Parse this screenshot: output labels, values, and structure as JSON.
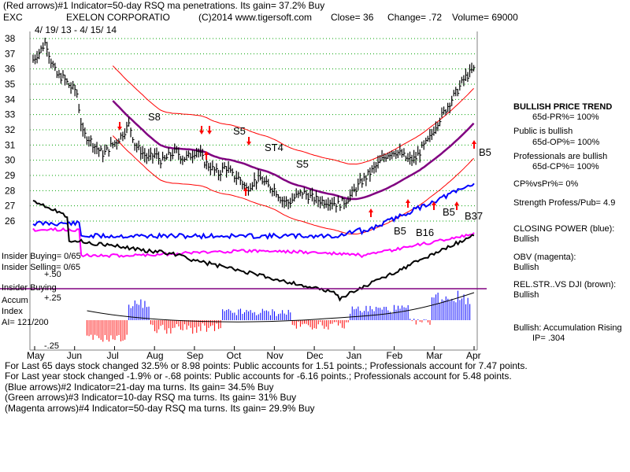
{
  "header": {
    "line1": "(Red arrows)#1 Indicator=50-day RSQ ma penetrations. Its gain= 37.2% Buy",
    "ticker": "EXC",
    "company": "EXELON CORPORATIO",
    "copyright": "(C)2014 www.tigersoft.com",
    "close": "Close=  36",
    "change": "Change= .72",
    "volume": "Volume= 69000",
    "date_range": "4/ 19/ 13 - 4/ 15/ 14"
  },
  "right_panel": {
    "trend_title": "BULLISH PRICE TREND",
    "pr": "65d-PR%= 100%",
    "public_title": "Public is bullish",
    "op": "65d-OP%= 100%",
    "pros_title": "Professionals are bullish",
    "cp": "65d-CP%= 100%",
    "cpvspr": "CP%vsPr%=  0%",
    "strength": "Strength Profess/Pub= 4.9",
    "closing_power_title": "CLOSING POWER (blue):",
    "closing_power_val": "Bullish",
    "obv_title": "OBV (magenta):",
    "obv_val": "Bullish",
    "relstr_title": "REL.STR..VS DJI (brown):",
    "relstr_val": "Bullish",
    "accum_title": "Bullish: Accumulation Rising",
    "ip": "IP=  .304"
  },
  "left_labels": {
    "insider_buying_count": "Insider Buying= 0/65",
    "insider_selling_count": "Insider Selling= 0/65",
    "insider_buying": "Insider Buying",
    "accum": "Accum",
    "index": "Index",
    "ai": "AI= 121/200",
    "plus50": "+.50",
    "plus25": "+.25",
    "minus25": "-.25"
  },
  "footer": {
    "line1": "For Last 65 days stock changed  32.5% or  8.98 points:  Public accounts for  1.51 points.;  Professionals account for  7.47 points.",
    "line2": "For Last year stock changed -1.9% or -.68 points:  Public accounts for -6.16 points.;  Professionals account for  5.48 points.",
    "line3": "(Blue arrows)#2 Indicator=21-day ma turns. Its gain= 34.5% Buy",
    "line4": "(Green arrows)#3 Indicator=10-day RSQ ma turns. Its gain= 31% Buy",
    "line5": "(Magenta arrows)#4 Indicator=50-day RSQ ma turns. Its gain= 29.9% Buy"
  },
  "colors": {
    "price": "#000000",
    "ma": "#800080",
    "band": "#ff0000",
    "closing_power": "#0000ff",
    "obv": "#ff00ff",
    "relstr": "#000000",
    "grid": "#00a000",
    "accum_pos": "#0000ff",
    "accum_neg": "#ff0000",
    "insider_line": "#800080"
  },
  "chart_data": {
    "type": "line",
    "title": "EXELON CORPORATIO",
    "y_ticks": [
      38,
      37,
      36,
      35,
      34,
      33,
      32,
      31,
      30,
      29,
      28,
      27,
      26
    ],
    "ylim": [
      25.6,
      38.6
    ],
    "x_months": [
      "May",
      "Jun",
      "Jul",
      "Aug",
      "Sep",
      "Oct",
      "Nov",
      "Dec",
      "Jan",
      "Feb",
      "Mar",
      "Apr"
    ],
    "price_series": {
      "name": "Price",
      "points": [
        [
          0,
          36.6
        ],
        [
          0.3,
          37.2
        ],
        [
          0.55,
          37.8
        ],
        [
          0.75,
          36.6
        ],
        [
          1,
          35.6
        ],
        [
          1.3,
          35.4
        ],
        [
          1.6,
          34.8
        ],
        [
          1.85,
          34.6
        ],
        [
          2.1,
          31.8
        ],
        [
          2.4,
          31.4
        ],
        [
          2.7,
          30.8
        ],
        [
          3,
          30.4
        ],
        [
          3.3,
          30.9
        ],
        [
          3.6,
          31.3
        ],
        [
          3.9,
          31.9
        ],
        [
          4.1,
          32.4
        ],
        [
          4.35,
          31.0
        ],
        [
          4.6,
          30.6
        ],
        [
          4.9,
          30.1
        ],
        [
          5.2,
          30.4
        ],
        [
          5.5,
          29.9
        ],
        [
          5.8,
          30.3
        ],
        [
          6.1,
          30.6
        ],
        [
          6.4,
          30.1
        ],
        [
          6.7,
          30.3
        ],
        [
          7,
          30.7
        ],
        [
          7.3,
          29.9
        ],
        [
          7.6,
          29.5
        ],
        [
          7.9,
          29.1
        ],
        [
          8.2,
          29.6
        ],
        [
          8.5,
          29.0
        ],
        [
          8.8,
          28.8
        ],
        [
          9.1,
          28.1
        ],
        [
          9.4,
          28.6
        ],
        [
          9.7,
          28.8
        ],
        [
          10,
          28.3
        ],
        [
          10.3,
          28.1
        ],
        [
          10.6,
          27.4
        ],
        [
          10.9,
          27.2
        ],
        [
          11.2,
          27.6
        ],
        [
          11.5,
          27.9
        ],
        [
          11.8,
          27.6
        ],
        [
          12.1,
          27.4
        ],
        [
          12.4,
          27.3
        ],
        [
          12.7,
          27.3
        ],
        [
          13,
          27.1
        ],
        [
          13.3,
          27.3
        ],
        [
          13.6,
          27.8
        ],
        [
          13.9,
          28.4
        ],
        [
          14.2,
          28.9
        ],
        [
          14.5,
          29.4
        ],
        [
          14.8,
          29.9
        ],
        [
          15.1,
          30.4
        ],
        [
          15.4,
          30.6
        ],
        [
          15.7,
          30.4
        ],
        [
          16,
          30.0
        ],
        [
          16.3,
          30.1
        ],
        [
          16.6,
          30.8
        ],
        [
          16.9,
          31.4
        ],
        [
          17.2,
          32.4
        ],
        [
          17.5,
          33.1
        ],
        [
          17.8,
          33.9
        ],
        [
          18.1,
          34.6
        ],
        [
          18.4,
          35.4
        ],
        [
          18.8,
          36.0
        ]
      ]
    },
    "annotations": [
      "S8",
      "S5",
      "ST4",
      "S5",
      "B5",
      "B16",
      "B5",
      "B37",
      "B5"
    ]
  }
}
